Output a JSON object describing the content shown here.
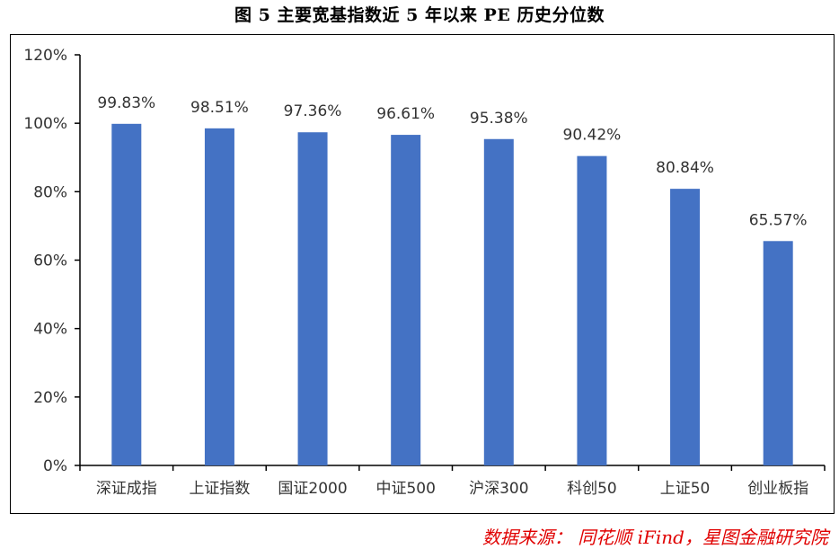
{
  "title": "图 5 主要宽基指数近 5 年以来 PE 历史分位数",
  "source": "数据来源： 同花顺 iFind，星图金融研究院",
  "colors": {
    "bar": "#4472C4",
    "axis": "#000000",
    "label": "#333333",
    "source": "#e00000"
  },
  "chart_data": {
    "type": "bar",
    "title": "图 5 主要宽基指数近 5 年以来 PE 历史分位数",
    "categories": [
      "深证成指",
      "上证指数",
      "国证2000",
      "中证500",
      "沪深300",
      "科创50",
      "上证50",
      "创业板指"
    ],
    "values": [
      99.83,
      98.51,
      97.36,
      96.61,
      95.38,
      90.42,
      80.84,
      65.57
    ],
    "value_labels": [
      "99.83%",
      "98.51%",
      "97.36%",
      "96.61%",
      "95.38%",
      "90.42%",
      "80.84%",
      "65.57%"
    ],
    "unit": "%",
    "yticks": [
      "0%",
      "20%",
      "40%",
      "60%",
      "80%",
      "100%",
      "120%"
    ],
    "ylim": [
      0,
      120
    ],
    "xlabel": "",
    "ylabel": "",
    "grid": false,
    "legend": "none"
  }
}
